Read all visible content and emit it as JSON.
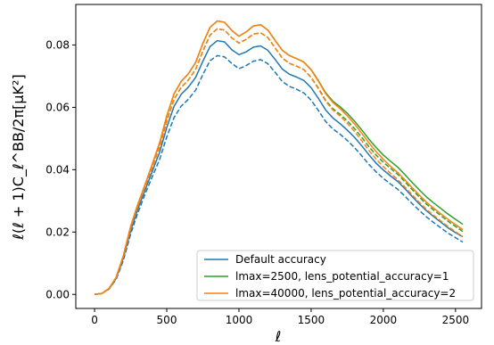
{
  "chart_data": {
    "type": "line",
    "title": "",
    "xlabel": "ℓ",
    "ylabel": "ℓ(ℓ + 1)C_ℓ^BB/2π[μK²]",
    "xlim": [
      -130,
      2680
    ],
    "ylim": [
      -0.0045,
      0.093
    ],
    "xticks": [
      0,
      500,
      1000,
      1500,
      2000,
      2500
    ],
    "xtick_labels": [
      "0",
      "500",
      "1000",
      "1500",
      "2000",
      "2500"
    ],
    "yticks": [
      0.0,
      0.02,
      0.04,
      0.06,
      0.08
    ],
    "ytick_labels": [
      "0.00",
      "0.02",
      "0.04",
      "0.06",
      "0.08"
    ],
    "grid": false,
    "legend_position": "lower right",
    "x": [
      0,
      50,
      100,
      150,
      200,
      250,
      300,
      350,
      400,
      450,
      500,
      550,
      600,
      650,
      700,
      750,
      800,
      850,
      900,
      950,
      1000,
      1050,
      1100,
      1150,
      1200,
      1250,
      1300,
      1350,
      1400,
      1450,
      1500,
      1550,
      1600,
      1650,
      1700,
      1750,
      1800,
      1850,
      1900,
      1950,
      2000,
      2050,
      2100,
      2150,
      2200,
      2250,
      2300,
      2350,
      2400,
      2450,
      2500,
      2550
    ],
    "series": [
      {
        "name": "Default accuracy",
        "color": "#1f77b4",
        "style": "solid",
        "values": [
          0.0,
          0.0003,
          0.0018,
          0.0052,
          0.0118,
          0.0205,
          0.0275,
          0.0335,
          0.0395,
          0.0455,
          0.0535,
          0.0603,
          0.0642,
          0.0665,
          0.0696,
          0.0748,
          0.0795,
          0.0814,
          0.081,
          0.0785,
          0.0769,
          0.0778,
          0.0793,
          0.0797,
          0.0783,
          0.0754,
          0.0723,
          0.0706,
          0.0697,
          0.0686,
          0.0663,
          0.0629,
          0.0592,
          0.0566,
          0.0548,
          0.0527,
          0.0504,
          0.0477,
          0.0448,
          0.0421,
          0.0399,
          0.038,
          0.0362,
          0.0339,
          0.0314,
          0.029,
          0.0268,
          0.0249,
          0.0231,
          0.0213,
          0.0198,
          0.0185
        ]
      },
      {
        "name": "",
        "color": "#1f77b4",
        "style": "dashed",
        "values": [
          0.0,
          0.0003,
          0.0017,
          0.0049,
          0.011,
          0.0194,
          0.0262,
          0.0322,
          0.0378,
          0.0432,
          0.0505,
          0.0567,
          0.0604,
          0.0626,
          0.0655,
          0.0705,
          0.075,
          0.0766,
          0.0762,
          0.0741,
          0.0724,
          0.0734,
          0.0748,
          0.0753,
          0.074,
          0.0713,
          0.0683,
          0.0667,
          0.0658,
          0.0646,
          0.0623,
          0.059,
          0.0555,
          0.0531,
          0.0514,
          0.0494,
          0.0471,
          0.0445,
          0.0417,
          0.0393,
          0.0372,
          0.0354,
          0.0337,
          0.0315,
          0.0291,
          0.0269,
          0.0248,
          0.023,
          0.0213,
          0.0196,
          0.0182,
          0.0168
        ]
      },
      {
        "name": "lmax=2500, lens_potential_accuracy=1",
        "color": "#2ca02c",
        "style": "solid",
        "values": [
          0.0,
          0.0003,
          0.0019,
          0.0055,
          0.0125,
          0.0218,
          0.029,
          0.0352,
          0.0418,
          0.0485,
          0.0572,
          0.0643,
          0.0683,
          0.0708,
          0.0744,
          0.0805,
          0.0857,
          0.0877,
          0.0873,
          0.0847,
          0.0828,
          0.0842,
          0.0861,
          0.0865,
          0.0848,
          0.0815,
          0.0783,
          0.0766,
          0.0756,
          0.0745,
          0.0721,
          0.0686,
          0.0647,
          0.062,
          0.0602,
          0.0581,
          0.0556,
          0.0528,
          0.0498,
          0.0471,
          0.0447,
          0.0427,
          0.0408,
          0.0384,
          0.0359,
          0.0335,
          0.0312,
          0.0293,
          0.0275,
          0.0257,
          0.0241,
          0.0225
        ]
      },
      {
        "name": "",
        "color": "#2ca02c",
        "style": "dashed",
        "values": [
          0.0,
          0.0003,
          0.0018,
          0.0054,
          0.0122,
          0.0212,
          0.0284,
          0.0345,
          0.0408,
          0.0472,
          0.0555,
          0.0625,
          0.0664,
          0.0688,
          0.0722,
          0.078,
          0.0832,
          0.0852,
          0.0848,
          0.0823,
          0.0806,
          0.0818,
          0.0835,
          0.0839,
          0.0824,
          0.0791,
          0.0758,
          0.0741,
          0.0732,
          0.0721,
          0.0696,
          0.0662,
          0.0623,
          0.0596,
          0.0578,
          0.0557,
          0.0532,
          0.0504,
          0.0474,
          0.0447,
          0.0424,
          0.0404,
          0.0385,
          0.0361,
          0.0336,
          0.0312,
          0.0289,
          0.027,
          0.0252,
          0.0234,
          0.0218,
          0.0202
        ]
      },
      {
        "name": "lmax=40000, lens_potential_accuracy=2",
        "color": "#ff7f0e",
        "style": "solid",
        "values": [
          0.0,
          0.0003,
          0.0019,
          0.0055,
          0.0125,
          0.0218,
          0.029,
          0.0352,
          0.0418,
          0.0485,
          0.0572,
          0.0643,
          0.0683,
          0.0708,
          0.0744,
          0.0805,
          0.0857,
          0.0877,
          0.0873,
          0.0847,
          0.0828,
          0.0842,
          0.0861,
          0.0865,
          0.0848,
          0.0815,
          0.0783,
          0.0766,
          0.0756,
          0.0745,
          0.072,
          0.0684,
          0.0644,
          0.0616,
          0.0596,
          0.0573,
          0.0547,
          0.0517,
          0.0486,
          0.0458,
          0.0433,
          0.0411,
          0.0391,
          0.0367,
          0.0342,
          0.0318,
          0.0295,
          0.0276,
          0.0258,
          0.024,
          0.0224,
          0.0208
        ]
      },
      {
        "name": "",
        "color": "#ff7f0e",
        "style": "dashed",
        "values": [
          0.0,
          0.0003,
          0.0018,
          0.0054,
          0.0122,
          0.0212,
          0.0284,
          0.0345,
          0.0408,
          0.0472,
          0.0555,
          0.0625,
          0.0664,
          0.0688,
          0.0722,
          0.078,
          0.0832,
          0.0852,
          0.0848,
          0.0823,
          0.0806,
          0.0818,
          0.0835,
          0.0839,
          0.0824,
          0.0791,
          0.0758,
          0.0741,
          0.0732,
          0.0721,
          0.0695,
          0.066,
          0.062,
          0.0592,
          0.0572,
          0.0549,
          0.0523,
          0.0493,
          0.0462,
          0.0434,
          0.041,
          0.0388,
          0.0368,
          0.0344,
          0.0319,
          0.0295,
          0.0272,
          0.0253,
          0.0235,
          0.0217,
          0.0201,
          0.0185
        ]
      }
    ]
  }
}
